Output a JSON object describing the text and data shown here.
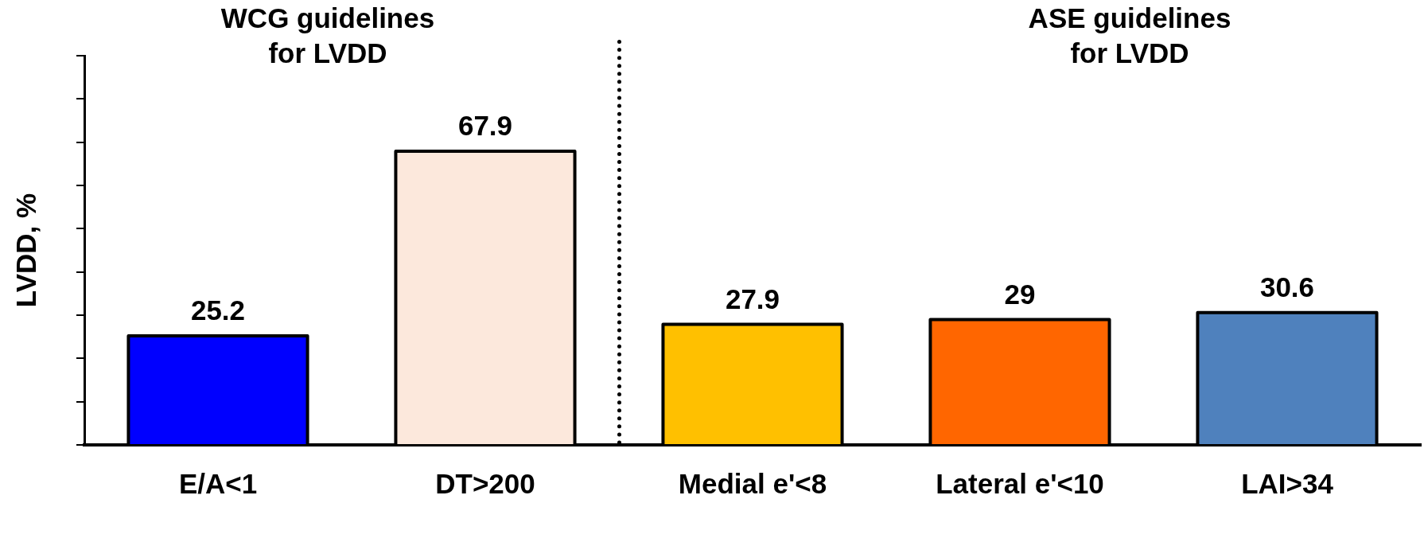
{
  "chart_data": {
    "type": "bar",
    "ylabel": "LVDD, %",
    "categories": [
      "E/A<1",
      "DT>200",
      "Medial e'<8",
      "Lateral e'<10",
      "LAI>34"
    ],
    "values": [
      25.2,
      67.9,
      27.9,
      29,
      30.6
    ],
    "colors": [
      "#0000ff",
      "#fce8dc",
      "#ffc000",
      "#ff6600",
      "#4f81bd"
    ],
    "tick_labels": "x",
    "grid": false,
    "legend": false,
    "data_labels": true,
    "annotations": [
      "WCG guidelines\nfor LVDD",
      "ASE guidelines\nfor LVDD"
    ]
  }
}
